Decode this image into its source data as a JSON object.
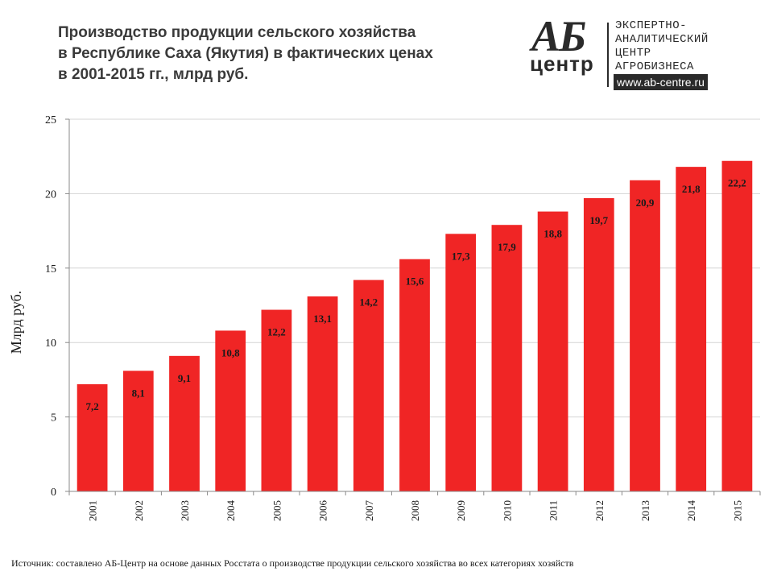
{
  "header": {
    "title_lines": [
      "Производство продукции сельского хозяйства",
      "в Республике Саха (Якутия) в фактических ценах",
      "в 2001-2015 гг., млрд руб."
    ]
  },
  "logo": {
    "mark_top": "АБ",
    "mark_bottom": "центр",
    "lines": [
      "ЭКСПЕРТНО-",
      "АНАЛИТИЧЕСКИЙ",
      "ЦЕНТР",
      "АГРОБИЗНЕСА"
    ],
    "url": "www.ab-centre.ru"
  },
  "footer": {
    "source": "Источник: составлено АБ-Центр на основе данных Росстата о производстве продукции сельского хозяйства во всех категориях хозяйств"
  },
  "colors": {
    "bar": "#f02525",
    "grid": "#d4d4d4",
    "axis": "#888888",
    "text": "#1a1a1a"
  },
  "chart_data": {
    "type": "bar",
    "categories": [
      "2001",
      "2002",
      "2003",
      "2004",
      "2005",
      "2006",
      "2007",
      "2008",
      "2009",
      "2010",
      "2011",
      "2012",
      "2013",
      "2014",
      "2015"
    ],
    "values": [
      7.2,
      8.1,
      9.1,
      10.8,
      12.2,
      13.1,
      14.2,
      15.6,
      17.3,
      17.9,
      18.8,
      19.7,
      20.9,
      21.8,
      22.2
    ],
    "value_labels": [
      "7,2",
      "8,1",
      "9,1",
      "10,8",
      "12,2",
      "13,1",
      "14,2",
      "15,6",
      "17,3",
      "17,9",
      "18,8",
      "19,7",
      "20,9",
      "21,8",
      "22,2"
    ],
    "ylabel": "Млрд руб.",
    "ylim": [
      0,
      25
    ],
    "yticks": [
      0,
      5,
      10,
      15,
      20,
      25
    ],
    "ytick_labels": [
      "0",
      "5",
      "10",
      "15",
      "20",
      "25"
    ],
    "grid": true,
    "legend": "none"
  }
}
